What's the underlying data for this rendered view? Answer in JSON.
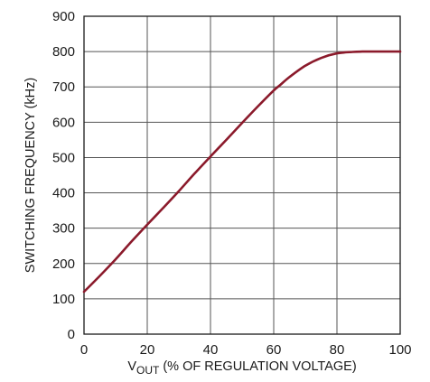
{
  "chart_data": {
    "type": "line",
    "xlabel_main": "V",
    "xlabel_sub": "OUT",
    "xlabel_rest": " (% OF REGULATION VOLTAGE)",
    "ylabel": "SWITCHING FREQUENCY (kHz)",
    "xlim": [
      0,
      100
    ],
    "ylim": [
      0,
      900
    ],
    "xticks": [
      "0",
      "20",
      "40",
      "60",
      "80",
      "100"
    ],
    "yticks": [
      "0",
      "100",
      "200",
      "300",
      "400",
      "500",
      "600",
      "700",
      "800",
      "900"
    ],
    "grid": true,
    "line_color": "#8b1a2b",
    "series": [
      {
        "x": [
          0,
          5,
          10,
          15,
          20,
          25,
          30,
          35,
          40,
          45,
          50,
          55,
          60,
          62,
          65,
          70,
          75,
          80,
          85,
          88,
          90,
          95,
          100
        ],
        "values": [
          120,
          165,
          212,
          262,
          310,
          357,
          405,
          455,
          503,
          550,
          598,
          645,
          690,
          705,
          728,
          760,
          782,
          795,
          799,
          800,
          800,
          800,
          800
        ]
      }
    ]
  }
}
